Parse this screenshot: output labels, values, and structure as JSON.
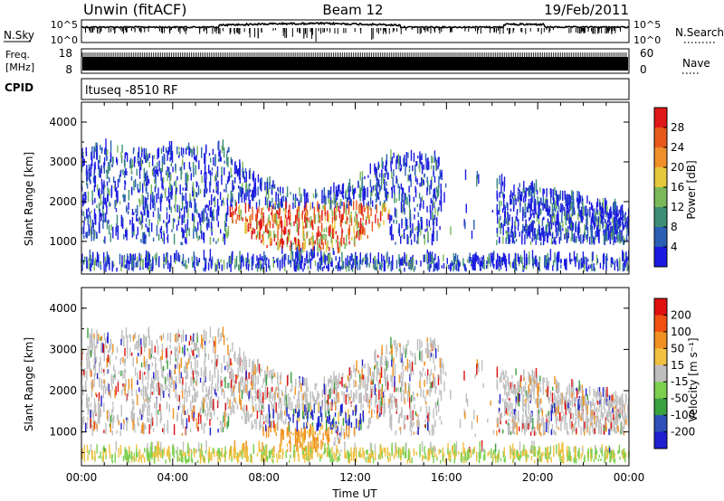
{
  "header": {
    "site": "Unwin (fitACF)",
    "beam": "Beam 12",
    "date": "19/Feb/2011"
  },
  "noise_panel": {
    "left_label": "N.Sky",
    "right_label": "N.Search",
    "left_ticks": [
      "10^5",
      "10^0"
    ],
    "right_ticks": [
      "10^5",
      "10^0"
    ]
  },
  "freq_panel": {
    "left_label_line1": "Freq.",
    "left_label_line2": "[MHz]",
    "right_label": "Nave",
    "left_ticks": [
      "18",
      "8"
    ],
    "right_ticks": [
      "60",
      "0"
    ]
  },
  "cpid_panel": {
    "label": "CPID",
    "text": "ltuseq -8510 RF"
  },
  "chart_data": [
    {
      "type": "heatmap",
      "quantity": "Power",
      "ylabel": "Slant Range [km]",
      "xlabel": "",
      "ylim": [
        180,
        4500
      ],
      "yticks": [
        "1000",
        "2000",
        "3000",
        "4000"
      ],
      "xlim": [
        0,
        24
      ],
      "colorbar_label": "Power [dB]",
      "colorbar_ticks": [
        "4",
        "8",
        "12",
        "16",
        "20",
        "24",
        "28"
      ],
      "colorbar_colors": [
        "#1a1ae0",
        "#2a5fb4",
        "#3c8f76",
        "#7ab85a",
        "#e6c83c",
        "#f0902a",
        "#e85a1a",
        "#e01818"
      ]
    },
    {
      "type": "heatmap",
      "quantity": "Velocity",
      "ylabel": "Slant Range [km]",
      "xlabel": "Time UT",
      "ylim": [
        180,
        4500
      ],
      "yticks": [
        "1000",
        "2000",
        "3000",
        "4000"
      ],
      "xlim": [
        0,
        24
      ],
      "xticks": [
        "00:00",
        "04:00",
        "08:00",
        "12:00",
        "16:00",
        "20:00",
        "00:00"
      ],
      "colorbar_label": "Velocity [m s⁻¹]",
      "colorbar_ticks": [
        "200",
        "100",
        "50",
        "15",
        "-15",
        "-50",
        "-100",
        "-200"
      ],
      "colorbar_colors": [
        "#2020d0",
        "#2e50b8",
        "#3aa040",
        "#7cd050",
        "#bebebe",
        "#f0c040",
        "#f09020",
        "#f05010",
        "#e01010"
      ]
    }
  ]
}
